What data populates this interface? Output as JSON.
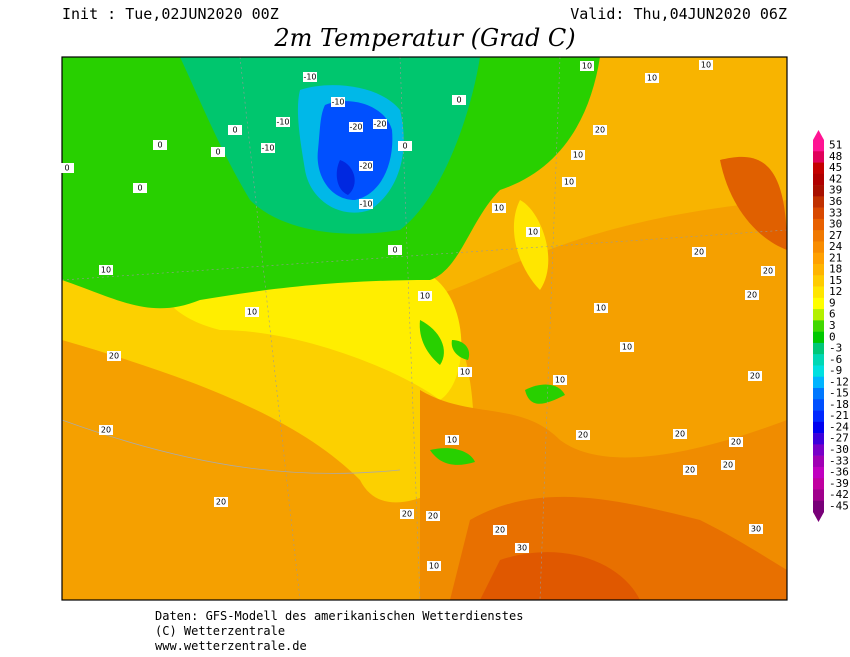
{
  "header": {
    "init": "Init : Tue,02JUN2020 00Z",
    "valid": "Valid: Thu,04JUN2020 06Z",
    "title": "2m Temperatur (Grad C)"
  },
  "colorbar": {
    "values": [
      51,
      48,
      45,
      42,
      39,
      36,
      33,
      30,
      27,
      24,
      21,
      18,
      15,
      12,
      9,
      6,
      3,
      0,
      -3,
      -6,
      -9,
      -12,
      -15,
      -18,
      -21,
      -24,
      -27,
      -30,
      -33,
      -36,
      -39,
      -42,
      -45
    ],
    "colors": [
      "#ff1493",
      "#e0005a",
      "#c40000",
      "#b00000",
      "#a81000",
      "#c03000",
      "#d84800",
      "#e86000",
      "#f07800",
      "#f88c00",
      "#ffa000",
      "#ffb400",
      "#ffcc00",
      "#ffe600",
      "#ffff00",
      "#b4f000",
      "#40d800",
      "#00c800",
      "#00c878",
      "#00d8b4",
      "#00e0e0",
      "#00b4ff",
      "#0078ff",
      "#0050ff",
      "#0028ff",
      "#0000f0",
      "#3c00dc",
      "#7800c8",
      "#a000b4",
      "#c000c0",
      "#c000a0",
      "#a0008c",
      "#780078"
    ]
  },
  "map": {
    "contour_labels": [
      "-10",
      "-20",
      "-20",
      "-20",
      "-10",
      "-10",
      "-10",
      "-10",
      "0",
      "0",
      "0",
      "0",
      "0",
      "0",
      "0",
      "0",
      "10",
      "10",
      "10",
      "10",
      "10",
      "10",
      "10",
      "10",
      "10",
      "10",
      "10",
      "10",
      "10",
      "10",
      "10",
      "10",
      "20",
      "20",
      "20",
      "20",
      "20",
      "20",
      "20",
      "20",
      "20",
      "20",
      "20",
      "20",
      "20",
      "20",
      "20",
      "20",
      "30",
      "30"
    ]
  },
  "footer": {
    "line1": "Daten: GFS-Modell des amerikanischen Wetterdienstes",
    "line2": "(C) Wetterzentrale",
    "line3": "www.wetterzentrale.de"
  }
}
